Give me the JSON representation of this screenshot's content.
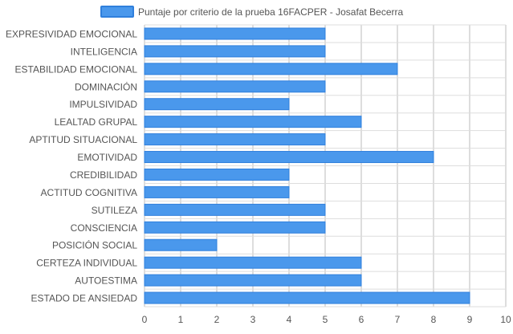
{
  "chart_data": {
    "type": "bar",
    "orientation": "horizontal",
    "legend": {
      "label": "Puntaje por criterio de la prueba 16FACPER - Josafat Becerra",
      "position": "top"
    },
    "categories": [
      "EXPRESIVIDAD EMOCIONAL",
      "INTELIGENCIA",
      "ESTABILIDAD EMOCIONAL",
      "DOMINACIÓN",
      "IMPULSIVIDAD",
      "LEALTAD GRUPAL",
      "APTITUD SITUACIONAL",
      "EMOTIVIDAD",
      "CREDIBILIDAD",
      "ACTITUD COGNITIVA",
      "SUTILEZA",
      "CONSCIENCIA",
      "POSICIÓN SOCIAL",
      "CERTEZA INDIVIDUAL",
      "AUTOESTIMA",
      "ESTADO DE ANSIEDAD"
    ],
    "series": [
      {
        "name": "Puntaje por criterio de la prueba 16FACPER - Josafat Becerra",
        "values": [
          5,
          5,
          7,
          5,
          4,
          6,
          5,
          8,
          4,
          4,
          5,
          5,
          2,
          6,
          6,
          9
        ]
      }
    ],
    "xlim": [
      0,
      10
    ],
    "xticks": [
      0,
      1,
      2,
      3,
      4,
      5,
      6,
      7,
      8,
      9,
      10
    ],
    "grid": true,
    "colors": {
      "bar_fill": "#4a98ec",
      "bar_stroke": "#2f7fdc",
      "grid": "#dddddd",
      "grid_major": "#bbbbbb",
      "text": "#555555"
    }
  }
}
